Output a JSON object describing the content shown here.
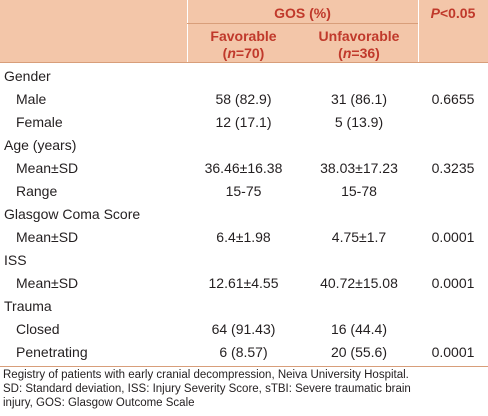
{
  "header": {
    "gos_label": "GOS (%)",
    "p_label": "P<0.05",
    "favorable_label": "Favorable",
    "favorable_n": "(n=70)",
    "unfavorable_label": "Unfavorable",
    "unfavorable_n": "(n=36)"
  },
  "rows": [
    {
      "type": "category",
      "label": "Gender"
    },
    {
      "type": "sub",
      "label": "Male",
      "favorable": "58 (82.9)",
      "unfavorable": "31 (86.1)",
      "p": "0.6655"
    },
    {
      "type": "sub",
      "label": "Female",
      "favorable": "12 (17.1)",
      "unfavorable": "5 (13.9)",
      "p": ""
    },
    {
      "type": "category",
      "label": "Age (years)"
    },
    {
      "type": "sub",
      "label": "Mean±SD",
      "favorable": "36.46±16.38",
      "unfavorable": "38.03±17.23",
      "p": "0.3235"
    },
    {
      "type": "sub",
      "label": "Range",
      "favorable": "15-75",
      "unfavorable": "15-78",
      "p": ""
    },
    {
      "type": "category",
      "label": "Glasgow Coma Score"
    },
    {
      "type": "sub",
      "label": "Mean±SD",
      "favorable": "6.4±1.98",
      "unfavorable": "4.75±1.7",
      "p": "0.0001"
    },
    {
      "type": "category",
      "label": "ISS"
    },
    {
      "type": "sub",
      "label": "Mean±SD",
      "favorable": "12.61±4.55",
      "unfavorable": "40.72±15.08",
      "p": "0.0001"
    },
    {
      "type": "category",
      "label": "Trauma"
    },
    {
      "type": "sub",
      "label": "Closed",
      "favorable": "64 (91.43)",
      "unfavorable": "16 (44.4)",
      "p": ""
    },
    {
      "type": "sub",
      "label": "Penetrating",
      "favorable": "6 (8.57)",
      "unfavorable": "20 (55.6)",
      "p": "0.0001"
    }
  ],
  "footnote": {
    "line1": "Registry of patients with early cranial decompression, Neiva University Hospital.",
    "line2": "SD: Standard deviation, ISS: Injury Severity Score, sTBI: Severe traumatic brain",
    "line3": "injury, GOS: Glasgow Outcome Scale"
  },
  "colors": {
    "header_bg": "#f3c6a9",
    "header_text": "#c0392b",
    "rule": "#d89e7a"
  }
}
